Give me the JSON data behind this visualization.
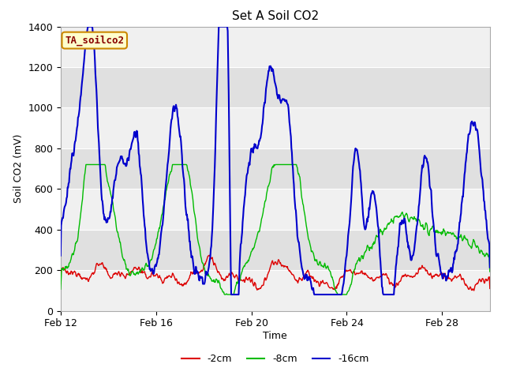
{
  "title": "Set A Soil CO2",
  "xlabel": "Time",
  "ylabel": "Soil CO2 (mV)",
  "ylim": [
    0,
    1400
  ],
  "yticks": [
    0,
    200,
    400,
    600,
    800,
    1000,
    1200,
    1400
  ],
  "xtick_labels": [
    "Feb 12",
    "Feb 16",
    "Feb 20",
    "Feb 24",
    "Feb 28"
  ],
  "xtick_positions": [
    0,
    4,
    8,
    12,
    16
  ],
  "label_box_text": "TA_soilco2",
  "label_box_facecolor": "#ffffcc",
  "label_box_edgecolor": "#cc8800",
  "label_box_textcolor": "#880000",
  "colors": {
    "red": "#dd0000",
    "green": "#00bb00",
    "blue": "#0000cc"
  },
  "legend_labels": [
    "-2cm",
    "-8cm",
    "-16cm"
  ],
  "bg_band_color": "#e0e0e0",
  "plot_bg_color": "#f0f0f0",
  "total_days": 18,
  "points_per_day": 48
}
